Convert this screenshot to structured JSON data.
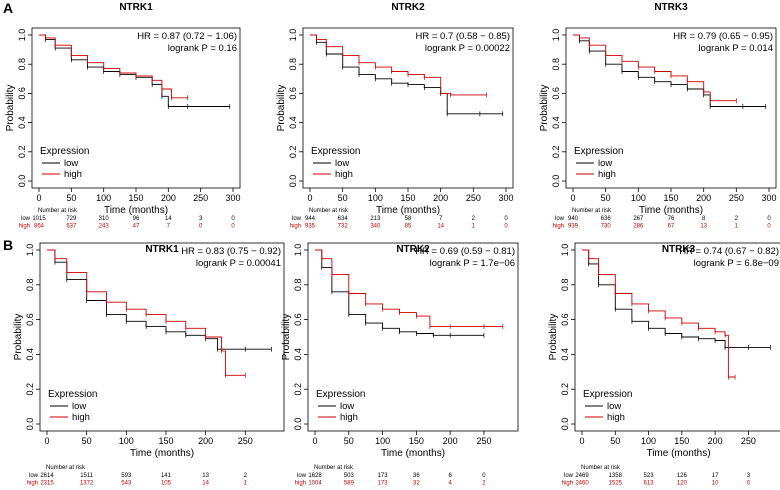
{
  "panel_labels": [
    "A",
    "B"
  ],
  "chart_data": [
    {
      "type": "line",
      "subtype": "kaplan-meier",
      "row": "A",
      "title": "NTRK1",
      "xlabel": "Time (months)",
      "ylabel": "Probability",
      "xlim": [
        0,
        300
      ],
      "ylim": [
        0,
        1
      ],
      "xticks": [
        "0",
        "50",
        "100",
        "150",
        "200",
        "250",
        "300"
      ],
      "yticks": [
        "0.0",
        "0.2",
        "0.4",
        "0.6",
        "0.8",
        "1.0"
      ],
      "hr_text": "HR = 0.87 (0.72 − 1.06)",
      "logrank_text": "logrank P = 0.16",
      "legend_title": "Expression",
      "series": [
        {
          "name": "low",
          "color": "#000000",
          "x": [
            0,
            10,
            25,
            50,
            75,
            100,
            125,
            150,
            175,
            190,
            200,
            230,
            295
          ],
          "y": [
            1.0,
            0.97,
            0.91,
            0.83,
            0.78,
            0.75,
            0.73,
            0.71,
            0.66,
            0.58,
            0.51,
            0.51,
            0.51
          ]
        },
        {
          "name": "high",
          "color": "#cc0000",
          "x": [
            0,
            10,
            25,
            50,
            75,
            100,
            125,
            150,
            175,
            190,
            205,
            230
          ],
          "y": [
            1.0,
            0.98,
            0.93,
            0.86,
            0.81,
            0.77,
            0.74,
            0.72,
            0.69,
            0.63,
            0.57,
            0.57
          ]
        }
      ],
      "number_at_risk": {
        "header": "Number at risk",
        "times": [
          0,
          50,
          100,
          150,
          200,
          250,
          300
        ],
        "low": [
          "1015",
          "729",
          "310",
          "96",
          "14",
          "3",
          "0"
        ],
        "high": [
          "864",
          "637",
          "243",
          "47",
          "7",
          "0",
          "0"
        ]
      }
    },
    {
      "type": "line",
      "subtype": "kaplan-meier",
      "row": "A",
      "title": "NTRK2",
      "xlabel": "Time (months)",
      "ylabel": "Probability",
      "xlim": [
        0,
        300
      ],
      "ylim": [
        0,
        1
      ],
      "xticks": [
        "0",
        "50",
        "100",
        "150",
        "200",
        "250",
        "300"
      ],
      "yticks": [
        "0.0",
        "0.2",
        "0.4",
        "0.6",
        "0.8",
        "1.0"
      ],
      "hr_text": "HR = 0.7 (0.58 − 0.85)",
      "logrank_text": "logrank P = 0.00022",
      "legend_title": "Expression",
      "series": [
        {
          "name": "low",
          "color": "#000000",
          "x": [
            0,
            10,
            25,
            50,
            75,
            100,
            125,
            150,
            175,
            200,
            210,
            260,
            295
          ],
          "y": [
            1.0,
            0.95,
            0.87,
            0.78,
            0.73,
            0.7,
            0.67,
            0.66,
            0.64,
            0.6,
            0.46,
            0.46,
            0.46
          ]
        },
        {
          "name": "high",
          "color": "#cc0000",
          "x": [
            0,
            10,
            25,
            50,
            75,
            100,
            125,
            150,
            175,
            200,
            215,
            270
          ],
          "y": [
            1.0,
            0.97,
            0.92,
            0.86,
            0.81,
            0.78,
            0.75,
            0.73,
            0.71,
            0.6,
            0.59,
            0.59
          ]
        }
      ],
      "number_at_risk": {
        "header": "Number at risk",
        "times": [
          0,
          50,
          100,
          150,
          200,
          250,
          300
        ],
        "low": [
          "944",
          "634",
          "213",
          "58",
          "7",
          "2",
          "0"
        ],
        "high": [
          "935",
          "732",
          "340",
          "85",
          "14",
          "1",
          "0"
        ]
      }
    },
    {
      "type": "line",
      "subtype": "kaplan-meier",
      "row": "A",
      "title": "NTRK3",
      "xlabel": "Time (months)",
      "ylabel": "Probability",
      "xlim": [
        0,
        300
      ],
      "ylim": [
        0,
        1
      ],
      "xticks": [
        "0",
        "50",
        "100",
        "150",
        "200",
        "250",
        "300"
      ],
      "yticks": [
        "0.0",
        "0.2",
        "0.4",
        "0.6",
        "0.8",
        "1.0"
      ],
      "hr_text": "HR = 0.79 (0.65 − 0.95)",
      "logrank_text": "logrank P = 0.014",
      "legend_title": "Expression",
      "series": [
        {
          "name": "low",
          "color": "#000000",
          "x": [
            0,
            10,
            25,
            50,
            75,
            100,
            125,
            150,
            175,
            200,
            210,
            260,
            295
          ],
          "y": [
            1.0,
            0.96,
            0.89,
            0.8,
            0.75,
            0.71,
            0.68,
            0.66,
            0.63,
            0.59,
            0.51,
            0.51,
            0.51
          ]
        },
        {
          "name": "high",
          "color": "#cc0000",
          "x": [
            0,
            10,
            25,
            50,
            75,
            100,
            125,
            150,
            175,
            200,
            210,
            250
          ],
          "y": [
            1.0,
            0.98,
            0.93,
            0.86,
            0.82,
            0.78,
            0.75,
            0.72,
            0.68,
            0.61,
            0.55,
            0.55
          ]
        }
      ],
      "number_at_risk": {
        "header": "Number at risk",
        "times": [
          0,
          50,
          100,
          150,
          200,
          250,
          300
        ],
        "low": [
          "940",
          "636",
          "267",
          "76",
          "8",
          "2",
          "0"
        ],
        "high": [
          "939",
          "730",
          "286",
          "67",
          "13",
          "1",
          "0"
        ]
      }
    },
    {
      "type": "line",
      "subtype": "kaplan-meier",
      "row": "B",
      "title": "NTRK1",
      "xlabel": "Time (months)",
      "ylabel": "Probability",
      "xlim": [
        0,
        290
      ],
      "ylim": [
        0,
        1
      ],
      "xticks": [
        "0",
        "50",
        "100",
        "150",
        "200",
        "250"
      ],
      "yticks": [
        "0.0",
        "0.2",
        "0.4",
        "0.6",
        "0.8",
        "1.0"
      ],
      "hr_text": "HR = 0.83 (0.75 − 0.92)",
      "logrank_text": "logrank P = 0.00041",
      "legend_title": "Expression",
      "series": [
        {
          "name": "low",
          "color": "#000000",
          "x": [
            0,
            10,
            25,
            50,
            75,
            100,
            125,
            150,
            175,
            200,
            215,
            250,
            283
          ],
          "y": [
            1.0,
            0.93,
            0.83,
            0.71,
            0.63,
            0.59,
            0.56,
            0.53,
            0.51,
            0.49,
            0.43,
            0.43,
            0.43
          ]
        },
        {
          "name": "high",
          "color": "#cc0000",
          "x": [
            0,
            10,
            25,
            50,
            75,
            100,
            125,
            150,
            175,
            200,
            220,
            225,
            250
          ],
          "y": [
            1.0,
            0.95,
            0.87,
            0.76,
            0.7,
            0.66,
            0.63,
            0.59,
            0.55,
            0.5,
            0.42,
            0.28,
            0.28
          ]
        }
      ],
      "number_at_risk": {
        "header": "Number at risk",
        "times": [
          0,
          50,
          100,
          150,
          200,
          250
        ],
        "low": [
          "2614",
          "1511",
          "593",
          "141",
          "13",
          "2"
        ],
        "high": [
          "2315",
          "1372",
          "543",
          "105",
          "14",
          "1"
        ]
      }
    },
    {
      "type": "line",
      "subtype": "kaplan-meier",
      "row": "B",
      "title": "NTRK2",
      "xlabel": "Time (months)",
      "ylabel": "Probability",
      "xlim": [
        0,
        290
      ],
      "ylim": [
        0,
        1
      ],
      "xticks": [
        "0",
        "50",
        "100",
        "150",
        "200",
        "250"
      ],
      "yticks": [
        "0.0",
        "0.2",
        "0.4",
        "0.6",
        "0.8",
        "1.0"
      ],
      "hr_text": "HR = 0.69 (0.59 − 0.81)",
      "logrank_text": "logrank P = 1.7e−06",
      "legend_title": "Expression",
      "series": [
        {
          "name": "low",
          "color": "#000000",
          "x": [
            0,
            10,
            25,
            50,
            75,
            100,
            125,
            150,
            175,
            200,
            250
          ],
          "y": [
            1.0,
            0.9,
            0.76,
            0.63,
            0.58,
            0.55,
            0.53,
            0.52,
            0.51,
            0.51,
            0.51
          ]
        },
        {
          "name": "high",
          "color": "#cc0000",
          "x": [
            0,
            10,
            25,
            50,
            75,
            100,
            125,
            150,
            170,
            200,
            250,
            278
          ],
          "y": [
            1.0,
            0.95,
            0.86,
            0.75,
            0.69,
            0.66,
            0.64,
            0.62,
            0.56,
            0.56,
            0.56,
            0.56
          ]
        }
      ],
      "number_at_risk": {
        "header": "Number at risk",
        "times": [
          0,
          50,
          100,
          150,
          200,
          250
        ],
        "low": [
          "1628",
          "503",
          "173",
          "36",
          "6",
          "0"
        ],
        "high": [
          "1004",
          "589",
          "173",
          "32",
          "4",
          "2"
        ]
      }
    },
    {
      "type": "line",
      "subtype": "kaplan-meier",
      "row": "B",
      "title": "NTRK3",
      "xlabel": "Time (months)",
      "ylabel": "Probability",
      "xlim": [
        0,
        290
      ],
      "ylim": [
        0,
        1
      ],
      "xticks": [
        "0",
        "50",
        "100",
        "150",
        "200",
        "250"
      ],
      "yticks": [
        "0.0",
        "0.2",
        "0.4",
        "0.6",
        "0.8",
        "1.0"
      ],
      "hr_text": "HR = 0.74 (0.67 − 0.82)",
      "logrank_text": "logrank P = 6.8e−09",
      "legend_title": "Expression",
      "series": [
        {
          "name": "low",
          "color": "#000000",
          "x": [
            0,
            10,
            25,
            50,
            75,
            100,
            125,
            150,
            175,
            200,
            215,
            250,
            283
          ],
          "y": [
            1.0,
            0.92,
            0.8,
            0.66,
            0.59,
            0.55,
            0.52,
            0.5,
            0.49,
            0.48,
            0.44,
            0.44,
            0.44
          ]
        },
        {
          "name": "high",
          "color": "#cc0000",
          "x": [
            0,
            10,
            25,
            50,
            75,
            100,
            125,
            150,
            175,
            200,
            215,
            220,
            230
          ],
          "y": [
            1.0,
            0.95,
            0.86,
            0.75,
            0.69,
            0.65,
            0.61,
            0.58,
            0.55,
            0.53,
            0.51,
            0.27,
            0.27
          ]
        }
      ],
      "number_at_risk": {
        "header": "Number at risk",
        "times": [
          0,
          50,
          100,
          150,
          200,
          250
        ],
        "low": [
          "2469",
          "1358",
          "523",
          "126",
          "17",
          "3"
        ],
        "high": [
          "2460",
          "1525",
          "613",
          "120",
          "10",
          "0"
        ]
      }
    }
  ]
}
